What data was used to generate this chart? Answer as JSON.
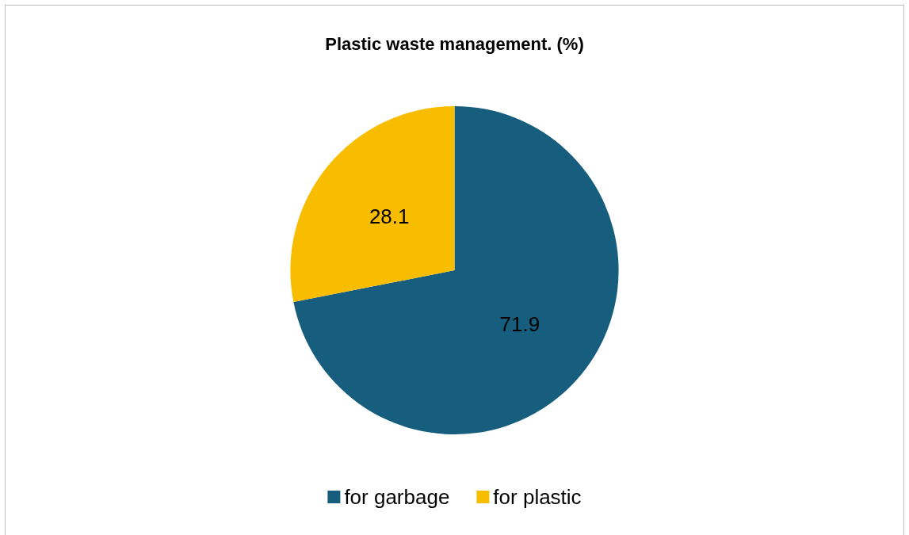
{
  "chart_data": {
    "type": "pie",
    "title": "Plastic waste management. (%)",
    "categories": [
      "for garbage",
      "for plastic"
    ],
    "values": [
      71.9,
      28.1
    ],
    "colors": [
      "#175e7e",
      "#f9bd00"
    ],
    "data_labels": true,
    "legend": "bottom"
  }
}
